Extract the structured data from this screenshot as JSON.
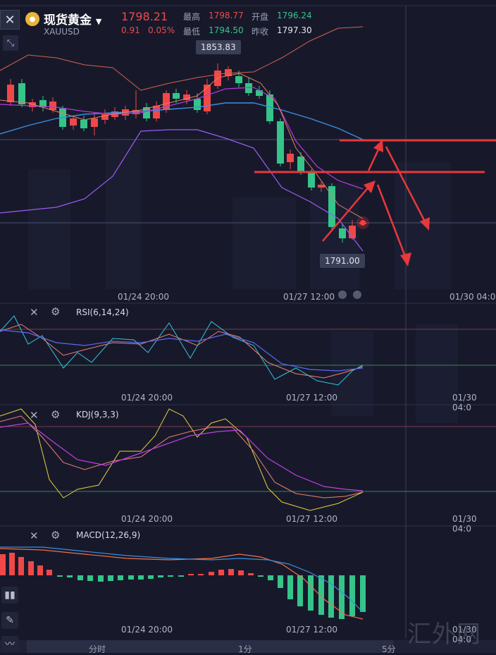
{
  "header": {
    "title": "现货黄金",
    "symbol": "XAUUSD",
    "price": "1798.21",
    "change": "0.91",
    "change_pct": "0.05%",
    "high_label": "最高",
    "high": "1798.77",
    "open_label": "开盘",
    "open": "1796.24",
    "low_label": "最低",
    "low": "1794.50",
    "prev_close_label": "昨收",
    "prev_close": "1797.30"
  },
  "main_chart": {
    "max_tag": "1853.83",
    "min_tag": "1791.00",
    "x_labels": [
      "01/24 20:00",
      "01/27 12:00",
      "01/30 04:0"
    ]
  },
  "indicators": {
    "rsi": {
      "title": "RSI(6,14,24)",
      "x_labels": [
        "01/24 20:00",
        "01/27 12:00",
        "01/30 04:0"
      ]
    },
    "kdj": {
      "title": "KDJ(9,3,3)",
      "x_labels": [
        "01/24 20:00",
        "01/27 12:00",
        "01/30 04:0"
      ]
    },
    "macd": {
      "title": "MACD(12,26,9)",
      "x_labels": [
        "01/24 20:00",
        "01/27 12:00",
        "01/30 04:0"
      ]
    }
  },
  "tabs": [
    "分时",
    "1分",
    "5分"
  ],
  "watermark": "汇外网",
  "icons": {
    "close": "close-icon",
    "expand": "expand-icon",
    "settings": "gear-icon",
    "candle_tool": "candlestick-icon",
    "draw_tool": "pencil-icon",
    "indicator_tool": "line-chart-icon"
  },
  "colors": {
    "background": "#17192b",
    "up": "#f04848",
    "down": "#35c489",
    "annotation": "#e8383b"
  }
}
